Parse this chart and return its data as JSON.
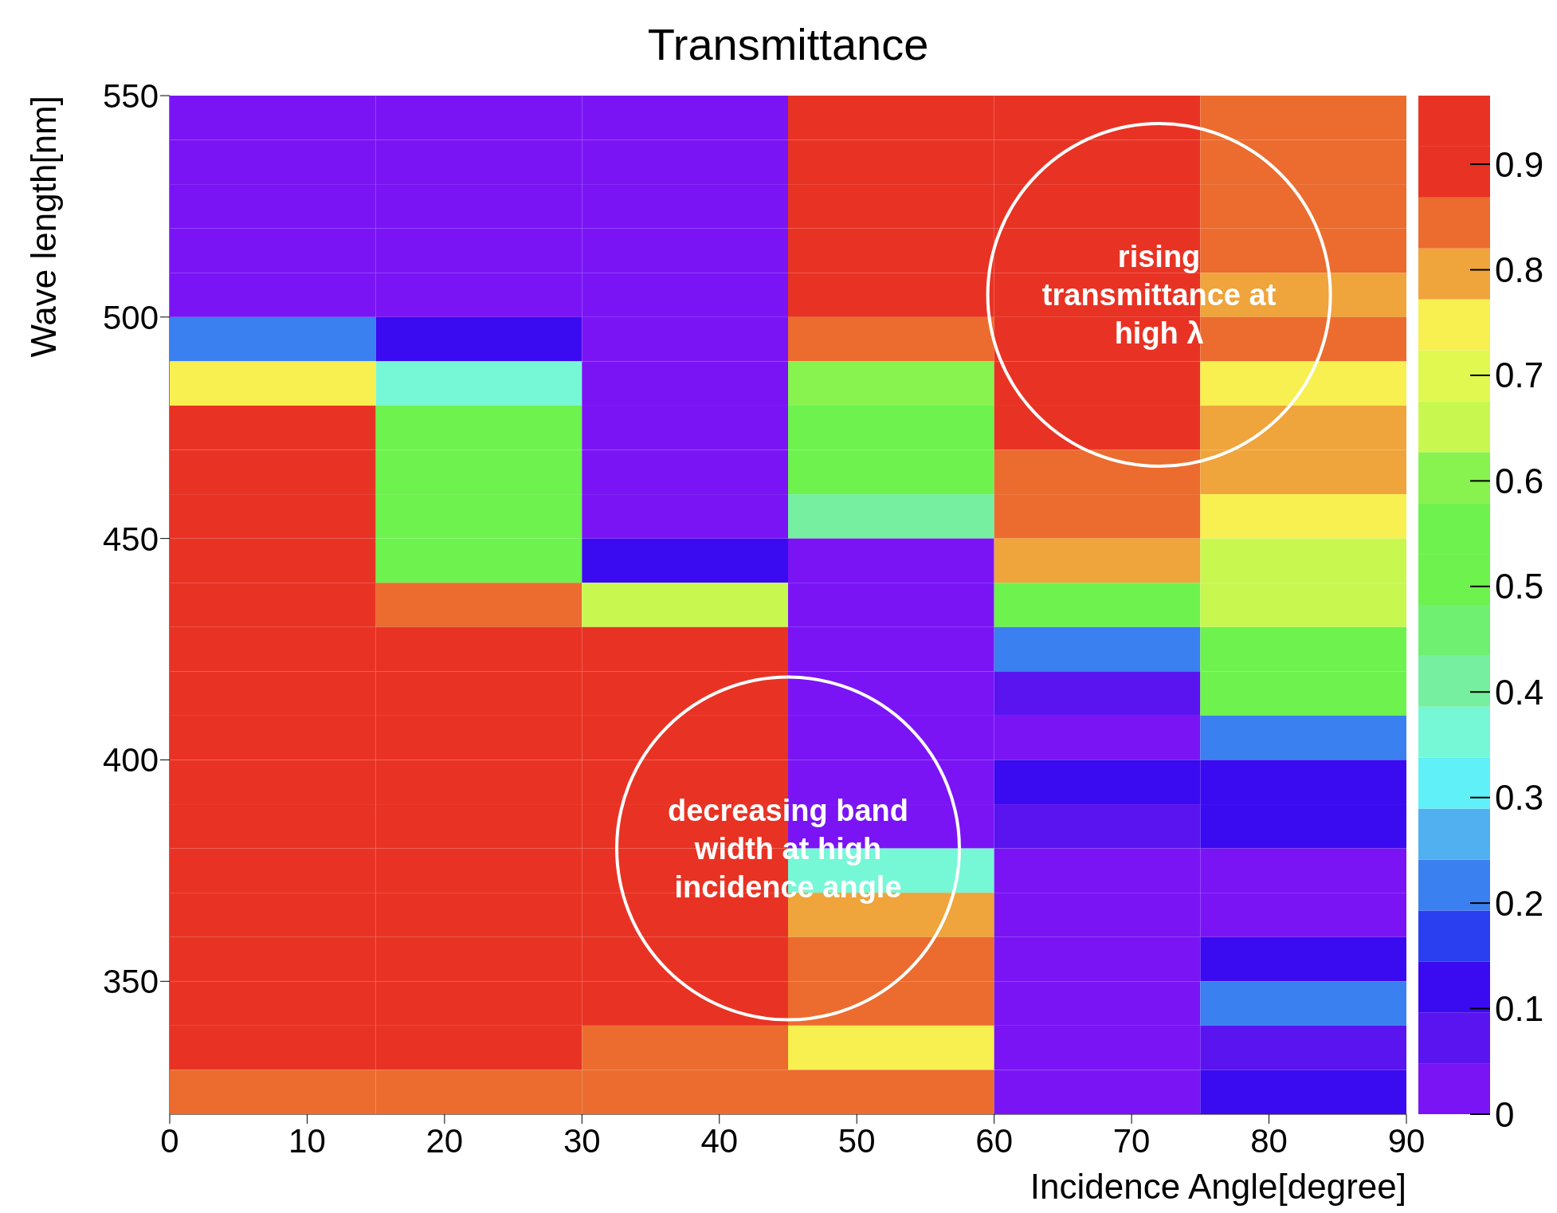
{
  "chart_data": {
    "type": "heatmap",
    "title": "Transmittance",
    "xlabel": "Incidence Angle[degree]",
    "ylabel": "Wave length[nm]",
    "xlim": [
      0,
      90
    ],
    "xticks": [
      0,
      10,
      20,
      30,
      40,
      50,
      60,
      70,
      80,
      90
    ],
    "ylim": [
      320,
      550
    ],
    "yticks": [
      350,
      400,
      450,
      500,
      550
    ],
    "clim": [
      0,
      0.965
    ],
    "cticks": [
      0,
      0.1,
      0.2,
      0.3,
      0.4,
      0.5,
      0.6,
      0.7,
      0.8,
      0.9
    ],
    "cells": [
      [
        0.03,
        0.03,
        0.03,
        0.93,
        0.93,
        0.85
      ],
      [
        0.03,
        0.03,
        0.03,
        0.93,
        0.93,
        0.85
      ],
      [
        0.03,
        0.03,
        0.03,
        0.93,
        0.93,
        0.85
      ],
      [
        0.03,
        0.03,
        0.03,
        0.93,
        0.93,
        0.85
      ],
      [
        0.03,
        0.03,
        0.03,
        0.93,
        0.93,
        0.8
      ],
      [
        0.22,
        0.12,
        0.03,
        0.85,
        0.93,
        0.85
      ],
      [
        0.75,
        0.36,
        0.03,
        0.6,
        0.93,
        0.75
      ],
      [
        0.93,
        0.55,
        0.03,
        0.55,
        0.93,
        0.8
      ],
      [
        0.93,
        0.55,
        0.03,
        0.55,
        0.85,
        0.8
      ],
      [
        0.93,
        0.55,
        0.03,
        0.41,
        0.85,
        0.75
      ],
      [
        0.93,
        0.55,
        0.12,
        0.03,
        0.8,
        0.66
      ],
      [
        0.93,
        0.85,
        0.66,
        0.03,
        0.55,
        0.66
      ],
      [
        0.93,
        0.93,
        0.93,
        0.03,
        0.22,
        0.55
      ],
      [
        0.93,
        0.93,
        0.93,
        0.03,
        0.07,
        0.55
      ],
      [
        0.93,
        0.93,
        0.93,
        0.03,
        0.03,
        0.22
      ],
      [
        0.93,
        0.93,
        0.93,
        0.03,
        0.12,
        0.12
      ],
      [
        0.93,
        0.93,
        0.93,
        0.03,
        0.07,
        0.12
      ],
      [
        0.93,
        0.93,
        0.93,
        0.36,
        0.03,
        0.03
      ],
      [
        0.93,
        0.93,
        0.93,
        0.8,
        0.03,
        0.03
      ],
      [
        0.93,
        0.93,
        0.93,
        0.85,
        0.03,
        0.12
      ],
      [
        0.93,
        0.93,
        0.93,
        0.85,
        0.03,
        0.22
      ],
      [
        0.93,
        0.93,
        0.85,
        0.75,
        0.03,
        0.07
      ],
      [
        0.85,
        0.85,
        0.85,
        0.85,
        0.03,
        0.12
      ]
    ],
    "annotations": [
      "rising transmittance at high λ",
      "decreasing band width at high incidence angle"
    ]
  }
}
